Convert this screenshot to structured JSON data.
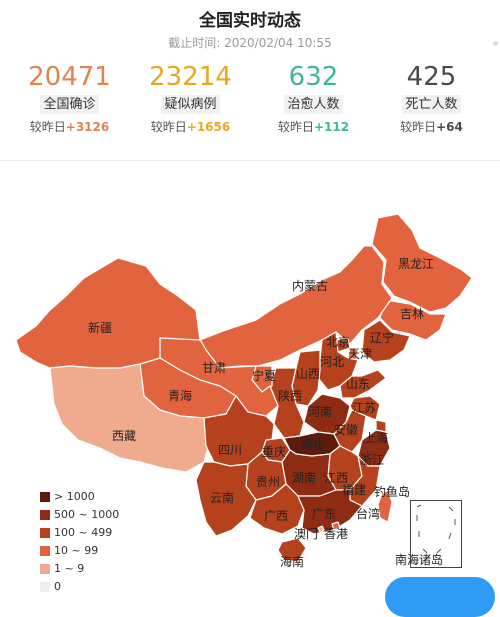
{
  "header": {
    "title": "全国实时动态",
    "timestamp": "截止时间: 2020/02/04 10:55"
  },
  "stats": [
    {
      "key": "confirmed",
      "value": "20471",
      "label": "全国确诊",
      "delta_prefix": "较昨日",
      "delta": "+3126",
      "color": "#e2834f"
    },
    {
      "key": "suspected",
      "value": "23214",
      "label": "疑似病例",
      "delta_prefix": "较昨日",
      "delta": "+1656",
      "color": "#e6a822"
    },
    {
      "key": "cured",
      "value": "632",
      "label": "治愈人数",
      "delta_prefix": "较昨日",
      "delta": "+112",
      "color": "#3cb892"
    },
    {
      "key": "dead",
      "value": "425",
      "label": "死亡人数",
      "delta_prefix": "较昨日",
      "delta": "+64",
      "color": "#4a4a4a"
    }
  ],
  "map": {
    "tiers": {
      "t5": "#5e1a0b",
      "t4": "#8e2b13",
      "t3": "#b5411d",
      "t2": "#e2643e",
      "t1": "#f0aa8e",
      "t0": "#eeeeee"
    },
    "labels": {
      "heilongjiang": "黑龙江",
      "jilin": "吉林",
      "liaoning": "辽宁",
      "neimenggu": "内蒙古",
      "beijing": "北京",
      "tianjin": "天津",
      "hebei": "河北",
      "shanxi": "山西",
      "shandong": "山东",
      "henan": "河南",
      "shaanxi": "陕西",
      "ningxia": "宁夏",
      "gansu": "甘肃",
      "qinghai": "青海",
      "xinjiang": "新疆",
      "xizang": "西藏",
      "sichuan": "四川",
      "chongqing": "重庆",
      "hubei": "湖北",
      "anhui": "安徽",
      "jiangsu": "江苏",
      "shanghai": "上海",
      "zhejiang": "浙江",
      "jiangxi": "江西",
      "hunan": "湖南",
      "guizhou": "贵州",
      "yunnan": "云南",
      "guangxi": "广西",
      "guangdong": "广东",
      "fujian": "福建",
      "taiwan": "台湾",
      "hongkong": "香港",
      "macau": "澳门",
      "hainan": "海南",
      "diaoyu": "钓鱼岛",
      "nanhai": "南海诸岛"
    }
  },
  "legend": [
    {
      "label": "> 1000",
      "color": "#5e1a0b"
    },
    {
      "label": "500 ~ 1000",
      "color": "#8e2b13"
    },
    {
      "label": "100 ~ 499",
      "color": "#b5411d"
    },
    {
      "label": "10 ~ 99",
      "color": "#e2643e"
    },
    {
      "label": "1 ~ 9",
      "color": "#f0aa8e"
    },
    {
      "label": "0",
      "color": "#eeeeee"
    }
  ]
}
